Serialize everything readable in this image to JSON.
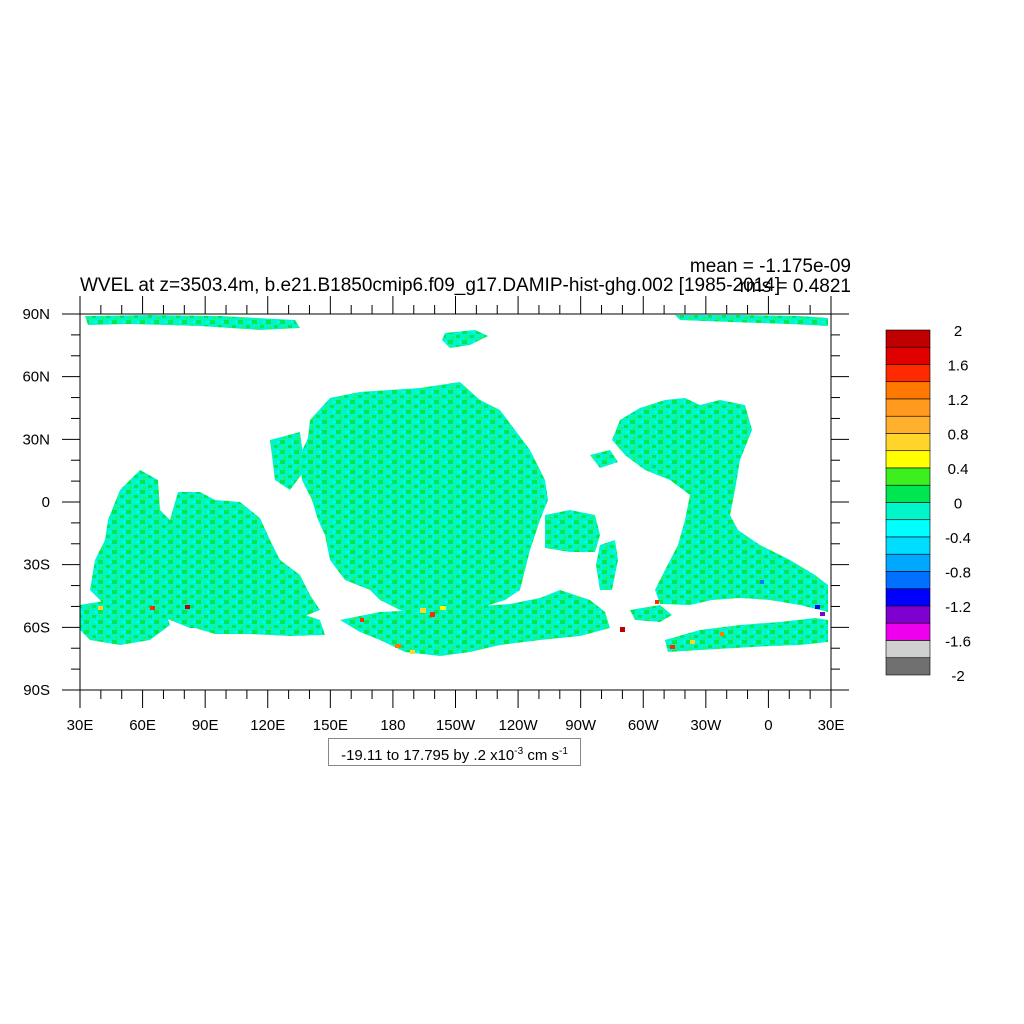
{
  "title": "WVEL at z=3503.4m, b.e21.B1850cmip6.f09_g17.DAMIP-hist-ghg.002 [1985-2014]",
  "stats": {
    "mean": "mean = -1.175e-09",
    "rms": "rms = 0.4821"
  },
  "axes": {
    "lat_ticks": [
      "90N",
      "60N",
      "30N",
      "0",
      "30S",
      "60S",
      "90S"
    ],
    "lon_ticks": [
      "30E",
      "60E",
      "90E",
      "120E",
      "150E",
      "180",
      "150W",
      "120W",
      "90W",
      "60W",
      "30W",
      "0",
      "30E"
    ]
  },
  "colorbar": {
    "labels": [
      "2",
      "1.6",
      "1.2",
      "0.8",
      "0.4",
      "0",
      "-0.4",
      "-0.8",
      "-1.2",
      "-1.6",
      "-2"
    ],
    "colors": [
      "#c00000",
      "#e00000",
      "#ff2a00",
      "#ff7800",
      "#ff9a1e",
      "#ffb02c",
      "#ffd52a",
      "#ffff00",
      "#3cf01e",
      "#00e650",
      "#00f5c8",
      "#00ffff",
      "#00ddff",
      "#00a8ff",
      "#0070ff",
      "#0000ff",
      "#8000d0",
      "#ee00ee",
      "#d0d0d0",
      "#707070"
    ]
  },
  "contour_info": {
    "range": "-19.11 to 17.795 by .2 x10",
    "exponent": "-3",
    "units": " cm s",
    "units_exponent": "-1"
  },
  "colors": {
    "ocean_main": "#00f5c8",
    "ocean_secondary": "#00e650",
    "land": "#ffffff",
    "frame": "#000000"
  }
}
